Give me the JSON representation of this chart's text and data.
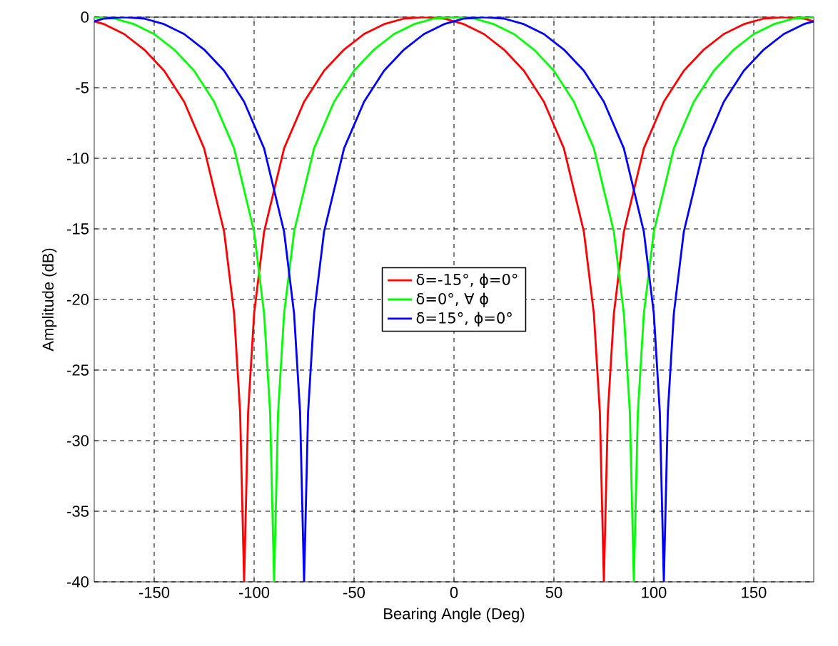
{
  "chart_data": {
    "type": "line",
    "xlabel": "Bearing Angle (Deg)",
    "ylabel": "Amplitude (dB)",
    "xlim": [
      -180,
      180
    ],
    "ylim": [
      -40,
      0
    ],
    "xticks": [
      -150,
      -100,
      -50,
      0,
      50,
      100,
      150
    ],
    "yticks": [
      -40,
      -35,
      -30,
      -25,
      -20,
      -15,
      -10,
      -5,
      0
    ],
    "grid": true,
    "legend": "center",
    "line_style": "solid",
    "marker": "none",
    "series": [
      {
        "name": "δ=-15°, ϕ=0°",
        "color": "#ff0000",
        "x": [
          -180,
          -175,
          -165,
          -155,
          -145,
          -135,
          -125,
          -115,
          -110,
          -107,
          -105,
          -103,
          -100,
          -95,
          -85,
          -75,
          -65,
          -55,
          -45,
          -35,
          -25,
          -15,
          -5,
          5,
          15,
          25,
          35,
          45,
          55,
          65,
          70,
          73,
          75,
          77,
          80,
          85,
          95,
          105,
          115,
          125,
          135,
          145,
          155,
          165,
          175,
          180
        ],
        "values": [
          -0.3,
          -0.5,
          -1.2,
          -2.3,
          -3.8,
          -6,
          -9.3,
          -15.2,
          -21,
          -28,
          -40,
          -28,
          -21,
          -15.2,
          -9.3,
          -6,
          -3.8,
          -2.3,
          -1.2,
          -0.5,
          -0.1,
          0,
          -0.1,
          -0.5,
          -1.2,
          -2.3,
          -3.8,
          -6,
          -9.3,
          -15.2,
          -21,
          -28,
          -40,
          -28,
          -21,
          -15.2,
          -9.3,
          -6,
          -3.8,
          -2.3,
          -1.2,
          -0.5,
          -0.1,
          0,
          -0.1,
          -0.3
        ]
      },
      {
        "name": "δ=0°, ∀ ϕ",
        "color": "#00ff00",
        "x": [
          -180,
          -170,
          -160,
          -150,
          -140,
          -130,
          -120,
          -110,
          -100,
          -95,
          -92,
          -90,
          -88,
          -85,
          -80,
          -70,
          -60,
          -50,
          -40,
          -30,
          -20,
          -10,
          0,
          10,
          20,
          30,
          40,
          50,
          60,
          70,
          80,
          85,
          88,
          90,
          92,
          95,
          100,
          110,
          120,
          130,
          140,
          150,
          160,
          170,
          180
        ],
        "values": [
          0,
          -0.1,
          -0.5,
          -1.2,
          -2.3,
          -3.8,
          -6,
          -9.3,
          -15.2,
          -21,
          -28,
          -40,
          -28,
          -21,
          -15.2,
          -9.3,
          -6,
          -3.8,
          -2.3,
          -1.2,
          -0.5,
          -0.1,
          0,
          -0.1,
          -0.5,
          -1.2,
          -2.3,
          -3.8,
          -6,
          -9.3,
          -15.2,
          -21,
          -28,
          -40,
          -28,
          -21,
          -15.2,
          -9.3,
          -6,
          -3.8,
          -2.3,
          -1.2,
          -0.5,
          -0.1,
          0
        ]
      },
      {
        "name": "δ=15°, ϕ=0°",
        "color": "#0000ff",
        "x": [
          -180,
          -175,
          -165,
          -155,
          -145,
          -135,
          -125,
          -115,
          -105,
          -95,
          -85,
          -80,
          -77,
          -75,
          -73,
          -70,
          -65,
          -55,
          -45,
          -35,
          -25,
          -15,
          -5,
          5,
          15,
          25,
          35,
          45,
          55,
          65,
          75,
          85,
          95,
          100,
          103,
          105,
          107,
          110,
          115,
          125,
          135,
          145,
          155,
          165,
          175,
          180
        ],
        "values": [
          -0.3,
          -0.1,
          0,
          -0.1,
          -0.5,
          -1.2,
          -2.3,
          -3.8,
          -6,
          -9.3,
          -15.2,
          -21,
          -28,
          -40,
          -28,
          -21,
          -15.2,
          -9.3,
          -6,
          -3.8,
          -2.3,
          -1.2,
          -0.5,
          -0.1,
          0,
          -0.1,
          -0.5,
          -1.2,
          -2.3,
          -3.8,
          -6,
          -9.3,
          -15.2,
          -21,
          -28,
          -40,
          -28,
          -21,
          -15.2,
          -9.3,
          -6,
          -3.8,
          -2.3,
          -1.2,
          -0.5,
          -0.3
        ]
      }
    ]
  }
}
